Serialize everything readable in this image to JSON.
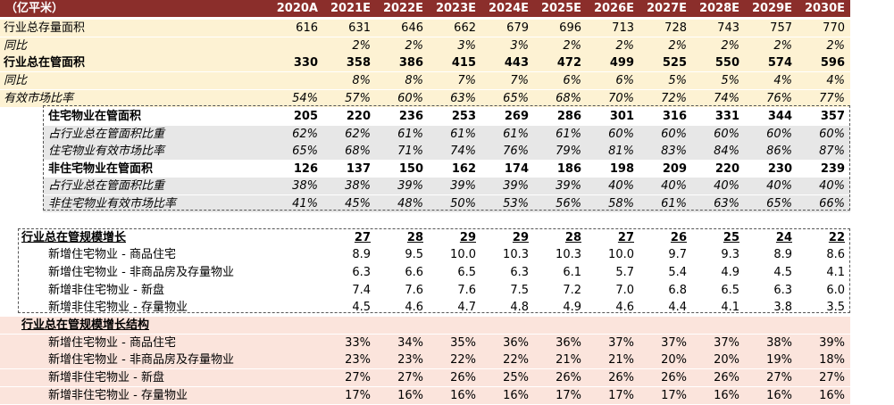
{
  "header": {
    "unit": "（亿平米）",
    "years": [
      "2020A",
      "2021E",
      "2022E",
      "2023E",
      "2024E",
      "2025E",
      "2026E",
      "2027E",
      "2028E",
      "2029E",
      "2030E"
    ]
  },
  "rows": [
    {
      "id": "stock-area",
      "label": "行业总存量面积",
      "values": [
        "616",
        "631",
        "646",
        "662",
        "679",
        "696",
        "713",
        "728",
        "743",
        "757",
        "770"
      ]
    },
    {
      "id": "stock-yoy",
      "label": "同比",
      "values": [
        "",
        "2%",
        "2%",
        "3%",
        "3%",
        "2%",
        "2%",
        "2%",
        "2%",
        "2%",
        "2%"
      ]
    },
    {
      "id": "managed-area",
      "label": "行业总在管面积",
      "values": [
        "330",
        "358",
        "386",
        "415",
        "443",
        "472",
        "499",
        "525",
        "550",
        "574",
        "596"
      ]
    },
    {
      "id": "managed-yoy",
      "label": "同比",
      "values": [
        "",
        "8%",
        "8%",
        "7%",
        "7%",
        "6%",
        "6%",
        "5%",
        "5%",
        "4%",
        "4%"
      ]
    },
    {
      "id": "effective-share",
      "label": "有效市场比率",
      "values": [
        "54%",
        "57%",
        "60%",
        "63%",
        "65%",
        "68%",
        "70%",
        "72%",
        "74%",
        "76%",
        "77%"
      ]
    },
    {
      "id": "res-area",
      "label": "住宅物业在管面积",
      "values": [
        "205",
        "220",
        "236",
        "253",
        "269",
        "286",
        "301",
        "316",
        "331",
        "344",
        "357"
      ]
    },
    {
      "id": "res-share",
      "label": "占行业总在管面积比重",
      "values": [
        "62%",
        "62%",
        "61%",
        "61%",
        "61%",
        "61%",
        "60%",
        "60%",
        "60%",
        "60%",
        "60%"
      ]
    },
    {
      "id": "res-effective",
      "label": "住宅物业有效市场比率",
      "values": [
        "65%",
        "68%",
        "71%",
        "74%",
        "76%",
        "79%",
        "81%",
        "83%",
        "84%",
        "86%",
        "87%"
      ]
    },
    {
      "id": "nonres-area",
      "label": "非住宅物业在管面积",
      "values": [
        "126",
        "137",
        "150",
        "162",
        "174",
        "186",
        "198",
        "209",
        "220",
        "230",
        "239"
      ]
    },
    {
      "id": "nonres-share",
      "label": "占行业总在管面积比重",
      "values": [
        "38%",
        "38%",
        "39%",
        "39%",
        "39%",
        "39%",
        "40%",
        "40%",
        "40%",
        "40%",
        "40%"
      ]
    },
    {
      "id": "nonres-effective",
      "label": "非住宅物业有效市场比率",
      "values": [
        "41%",
        "45%",
        "48%",
        "50%",
        "53%",
        "56%",
        "58%",
        "61%",
        "63%",
        "65%",
        "66%"
      ]
    },
    {
      "id": "growth-total",
      "label": "行业总在管规模增长",
      "values": [
        "",
        "27",
        "28",
        "29",
        "29",
        "28",
        "27",
        "26",
        "25",
        "24",
        "22"
      ]
    },
    {
      "id": "growth-res-commercial",
      "label": "新增住宅物业 - 商品住宅",
      "values": [
        "",
        "8.9",
        "9.5",
        "10.0",
        "10.3",
        "10.3",
        "10.0",
        "9.7",
        "9.3",
        "8.9",
        "8.6"
      ]
    },
    {
      "id": "growth-res-other",
      "label": "新增住宅物业 - 非商品房及存量物业",
      "values": [
        "",
        "6.3",
        "6.6",
        "6.5",
        "6.3",
        "6.1",
        "5.7",
        "5.4",
        "4.9",
        "4.5",
        "4.1"
      ]
    },
    {
      "id": "growth-nonres-new",
      "label": "新增非住宅物业 - 新盘",
      "values": [
        "",
        "7.4",
        "7.6",
        "7.6",
        "7.5",
        "7.2",
        "7.0",
        "6.8",
        "6.5",
        "6.3",
        "6.0"
      ]
    },
    {
      "id": "growth-nonres-stock",
      "label": "新增非住宅物业 - 存量物业",
      "values": [
        "",
        "4.5",
        "4.6",
        "4.7",
        "4.8",
        "4.9",
        "4.6",
        "4.4",
        "4.1",
        "3.8",
        "3.5"
      ]
    },
    {
      "id": "structure-total",
      "label": "行业总在管规模增长结构",
      "values": [
        "",
        "",
        "",
        "",
        "",
        "",
        "",
        "",
        "",
        "",
        ""
      ]
    },
    {
      "id": "structure-res-commercial",
      "label": "新增住宅物业 - 商品住宅",
      "values": [
        "",
        "33%",
        "34%",
        "35%",
        "36%",
        "36%",
        "37%",
        "37%",
        "37%",
        "38%",
        "39%"
      ]
    },
    {
      "id": "structure-res-other",
      "label": "新增住宅物业 - 非商品房及存量物业",
      "values": [
        "",
        "23%",
        "23%",
        "22%",
        "22%",
        "21%",
        "21%",
        "20%",
        "20%",
        "19%",
        "18%"
      ]
    },
    {
      "id": "structure-nonres-new",
      "label": "新增非住宅物业 - 新盘",
      "values": [
        "",
        "27%",
        "27%",
        "26%",
        "25%",
        "26%",
        "26%",
        "26%",
        "26%",
        "27%",
        "27%"
      ]
    },
    {
      "id": "structure-nonres-stock",
      "label": "新增非住宅物业 - 存量物业",
      "values": [
        "",
        "17%",
        "16%",
        "16%",
        "16%",
        "17%",
        "17%",
        "17%",
        "16%",
        "16%",
        "16%"
      ]
    }
  ],
  "colors": {
    "header_bg": "#8b2e2b",
    "cream": "#fdf2d3",
    "gray": "#e7e7e7",
    "pink": "#fbe4dc"
  }
}
